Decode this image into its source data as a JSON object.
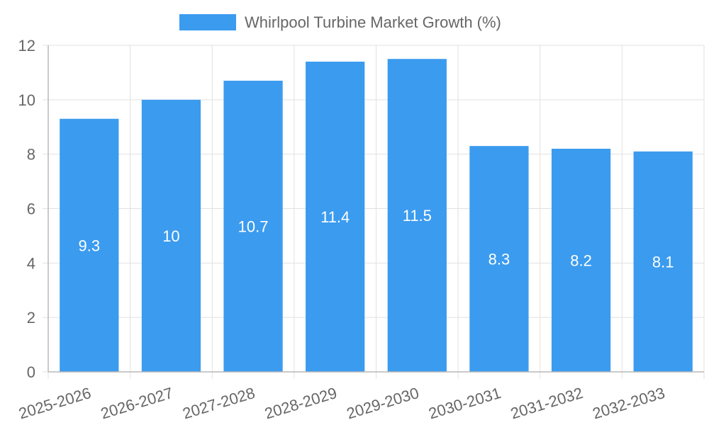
{
  "chart_data": {
    "type": "bar",
    "categories": [
      "2025-2026",
      "2026-2027",
      "2027-2028",
      "2028-2029",
      "2029-2030",
      "2030-2031",
      "2031-2032",
      "2032-2033"
    ],
    "series": [
      {
        "name": "Whirlpool Turbine Market Growth (%)",
        "values": [
          9.3,
          10,
          10.7,
          11.4,
          11.5,
          8.3,
          8.2,
          8.1
        ],
        "color": "#3b9bef"
      }
    ],
    "ylim": [
      0,
      12
    ],
    "yticks": [
      "0",
      "2",
      "4",
      "6",
      "8",
      "10",
      "12"
    ],
    "legend_position": "top-center",
    "grid": true,
    "data_labels": [
      "9.3",
      "10",
      "10.7",
      "11.4",
      "11.5",
      "8.3",
      "8.2",
      "8.1"
    ]
  }
}
